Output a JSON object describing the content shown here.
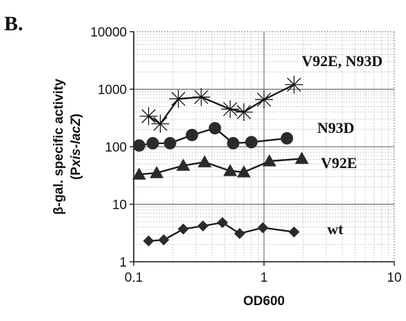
{
  "panel_label": "B.",
  "chart_data": {
    "type": "line",
    "title": "",
    "xlabel": "OD600",
    "ylabel_line1": "β-gal. specific activity",
    "ylabel_line2_pre": "(P",
    "ylabel_line2_italic": "xis-lacZ",
    "ylabel_line2_post": ")",
    "xscale": "log",
    "yscale": "log",
    "xlim": [
      0.1,
      10
    ],
    "ylim": [
      1,
      10000
    ],
    "xticks": [
      "0.1",
      "1",
      "10"
    ],
    "yticks": [
      "1",
      "10",
      "100",
      "1000",
      "10000"
    ],
    "grid": true,
    "legend": "none (series labelled directly at line ends)",
    "series": [
      {
        "name": "V92E, N93D",
        "marker": "star",
        "x": [
          0.13,
          0.16,
          0.22,
          0.33,
          0.55,
          0.7,
          1.0,
          1.7
        ],
        "y": [
          340,
          250,
          680,
          730,
          450,
          400,
          660,
          1200
        ]
      },
      {
        "name": "N93D",
        "marker": "circle",
        "x": [
          0.11,
          0.14,
          0.19,
          0.28,
          0.42,
          0.58,
          0.8,
          1.5
        ],
        "y": [
          105,
          115,
          115,
          160,
          210,
          115,
          120,
          140
        ]
      },
      {
        "name": "V92E",
        "marker": "triangle",
        "x": [
          0.11,
          0.15,
          0.24,
          0.35,
          0.55,
          0.7,
          1.1,
          1.95
        ],
        "y": [
          33,
          35,
          47,
          54,
          38,
          36,
          56,
          62
        ]
      },
      {
        "name": "wt",
        "marker": "diamond",
        "x": [
          0.13,
          0.17,
          0.24,
          0.34,
          0.48,
          0.65,
          0.98,
          1.7
        ],
        "y": [
          2.3,
          2.4,
          3.7,
          4.2,
          4.8,
          3.1,
          3.9,
          3.3
        ]
      }
    ]
  }
}
